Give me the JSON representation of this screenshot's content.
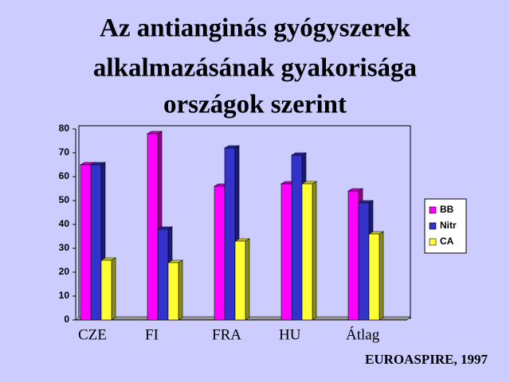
{
  "chart_data": {
    "type": "bar3d",
    "title": [
      "Az antianginás gyógyszerek",
      "alkalmazásának gyakorisága",
      "országok szerint"
    ],
    "categories": [
      "CZE",
      "FI",
      "FRA",
      "HU",
      "Átlag"
    ],
    "series": [
      {
        "name": "BB",
        "color": "#ff00ff",
        "values": [
          65,
          78,
          56,
          57,
          54
        ]
      },
      {
        "name": "Nitr",
        "color": "#3333cc",
        "values": [
          65,
          38,
          72,
          69,
          49
        ]
      },
      {
        "name": "CA",
        "color": "#ffff33",
        "values": [
          25,
          24,
          33,
          57,
          36
        ]
      }
    ],
    "ylim": [
      0,
      80
    ],
    "yticks": [
      0,
      10,
      20,
      30,
      40,
      50,
      60,
      70,
      80
    ],
    "source": "EUROASPIRE, 1997"
  }
}
